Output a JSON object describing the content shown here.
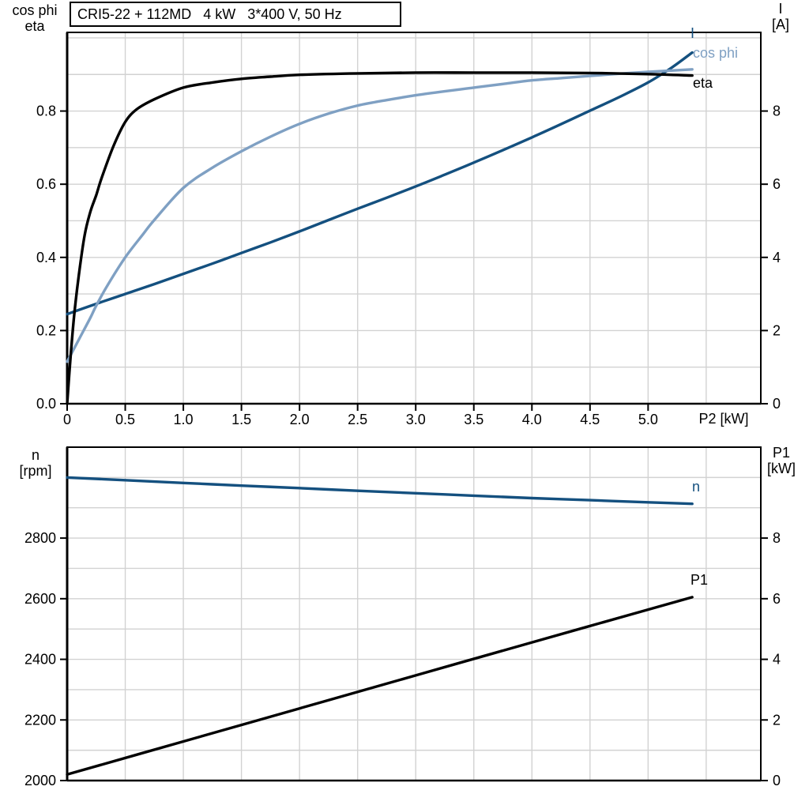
{
  "title": {
    "text": "CRI5-22 + 112MD   4 kW   3*400 V, 50 Hz"
  },
  "colors": {
    "dark_blue": "#14507F",
    "light_blue": "#7FA0C3",
    "black": "#000000",
    "grid": "#D2D2D2",
    "frame": "#000000"
  },
  "top_chart": {
    "corner_left": {
      "line1": "cos phi",
      "line2": "eta"
    },
    "corner_right": {
      "line1": "I",
      "line2": "[A]"
    },
    "x_axis_label": "P2 [kW]"
  },
  "bottom_chart": {
    "corner_left": {
      "line1": "n",
      "line2": "[rpm]"
    },
    "corner_right": {
      "line1": "P1",
      "line2": "[kW]"
    }
  },
  "chart_data": [
    {
      "type": "line",
      "title": "CRI5-22 + 112MD   4 kW   3*400 V, 50 Hz",
      "xlabel": "P2 [kW]",
      "ylabel_left": "cos phi / eta",
      "ylabel_right": "I [A]",
      "xlim": [
        0,
        5.97
      ],
      "ylim_left": [
        0,
        1.015
      ],
      "ylim_right": [
        0,
        10.15
      ],
      "grid": true,
      "legend_position": "end-of-curve",
      "x_ticks": {
        "values": [
          0,
          0.5,
          1,
          1.5,
          2,
          2.5,
          3,
          3.5,
          4,
          4.5,
          5
        ],
        "labels": [
          "0",
          "0.5",
          "1.0",
          "1.5",
          "2.0",
          "2.5",
          "3.0",
          "3.5",
          "4.0",
          "4.5",
          "5.0"
        ]
      },
      "y_ticks_left": {
        "values": [
          0,
          0.2,
          0.4,
          0.6,
          0.8
        ],
        "labels": [
          "0.0",
          "0.2",
          "0.4",
          "0.6",
          "0.8"
        ]
      },
      "y_ticks_right": {
        "values": [
          0,
          2,
          4,
          6,
          8
        ],
        "labels": [
          "0",
          "2",
          "4",
          "6",
          "8"
        ]
      },
      "grid_x": [
        0.5,
        1,
        1.5,
        2,
        2.5,
        3,
        3.5,
        4,
        4.5,
        5,
        5.5
      ],
      "grid_y": [
        0.1,
        0.2,
        0.3,
        0.4,
        0.5,
        0.6,
        0.7,
        0.8,
        0.9,
        1.0
      ],
      "series": [
        {
          "name": "I",
          "axis": "right",
          "color": "dark_blue",
          "points": [
            [
              0,
              2.45
            ],
            [
              0.25,
              2.73
            ],
            [
              0.5,
              3.0
            ],
            [
              0.75,
              3.27
            ],
            [
              1,
              3.55
            ],
            [
              1.25,
              3.83
            ],
            [
              1.5,
              4.12
            ],
            [
              1.75,
              4.41
            ],
            [
              2,
              4.71
            ],
            [
              2.25,
              5.02
            ],
            [
              2.5,
              5.33
            ],
            [
              2.75,
              5.63
            ],
            [
              3,
              5.94
            ],
            [
              3.25,
              6.26
            ],
            [
              3.5,
              6.59
            ],
            [
              3.75,
              6.93
            ],
            [
              4,
              7.28
            ],
            [
              4.25,
              7.64
            ],
            [
              4.5,
              8.01
            ],
            [
              4.75,
              8.38
            ],
            [
              5,
              8.78
            ],
            [
              5.2,
              9.18
            ],
            [
              5.38,
              9.6
            ]
          ]
        },
        {
          "name": "cos phi",
          "axis": "left",
          "color": "light_blue",
          "points": [
            [
              0,
              0.115
            ],
            [
              0.1,
              0.175
            ],
            [
              0.2,
              0.235
            ],
            [
              0.25,
              0.268
            ],
            [
              0.35,
              0.325
            ],
            [
              0.5,
              0.4
            ],
            [
              0.65,
              0.462
            ],
            [
              0.75,
              0.502
            ],
            [
              1,
              0.59
            ],
            [
              1.25,
              0.645
            ],
            [
              1.5,
              0.69
            ],
            [
              1.75,
              0.73
            ],
            [
              2,
              0.765
            ],
            [
              2.25,
              0.793
            ],
            [
              2.5,
              0.815
            ],
            [
              2.75,
              0.83
            ],
            [
              3,
              0.843
            ],
            [
              3.25,
              0.854
            ],
            [
              3.5,
              0.864
            ],
            [
              3.75,
              0.874
            ],
            [
              4,
              0.884
            ],
            [
              4.25,
              0.89
            ],
            [
              4.5,
              0.896
            ],
            [
              4.75,
              0.902
            ],
            [
              5,
              0.907
            ],
            [
              5.38,
              0.914
            ]
          ]
        },
        {
          "name": "eta",
          "axis": "left",
          "color": "black",
          "points": [
            [
              0,
              0
            ],
            [
              0.03,
              0.13
            ],
            [
              0.06,
              0.24
            ],
            [
              0.1,
              0.35
            ],
            [
              0.15,
              0.46
            ],
            [
              0.2,
              0.525
            ],
            [
              0.25,
              0.57
            ],
            [
              0.3,
              0.62
            ],
            [
              0.4,
              0.705
            ],
            [
              0.5,
              0.77
            ],
            [
              0.6,
              0.805
            ],
            [
              0.75,
              0.832
            ],
            [
              1,
              0.864
            ],
            [
              1.25,
              0.878
            ],
            [
              1.5,
              0.888
            ],
            [
              1.75,
              0.894
            ],
            [
              2,
              0.899
            ],
            [
              2.5,
              0.903
            ],
            [
              3,
              0.905
            ],
            [
              3.5,
              0.905
            ],
            [
              4,
              0.905
            ],
            [
              4.5,
              0.904
            ],
            [
              5,
              0.901
            ],
            [
              5.38,
              0.897
            ]
          ]
        }
      ]
    },
    {
      "type": "line",
      "title": "",
      "xlabel": "",
      "ylabel_left": "n [rpm]",
      "ylabel_right": "P1 [kW]",
      "xlim": [
        0,
        5.97
      ],
      "ylim_left": [
        2000,
        3100
      ],
      "ylim_right": [
        0,
        11
      ],
      "grid": true,
      "legend_position": "end-of-curve",
      "x_ticks": {
        "values": [],
        "labels": []
      },
      "y_ticks_left": {
        "values": [
          2000,
          2200,
          2400,
          2600,
          2800
        ],
        "labels": [
          "2000",
          "2200",
          "2400",
          "2600",
          "2800"
        ]
      },
      "y_ticks_right": {
        "values": [
          0,
          2,
          4,
          6,
          8
        ],
        "labels": [
          "0",
          "2",
          "4",
          "6",
          "8"
        ]
      },
      "grid_x": [
        0.5,
        1,
        1.5,
        2,
        2.5,
        3,
        3.5,
        4,
        4.5,
        5,
        5.5
      ],
      "grid_y": [
        2100,
        2200,
        2300,
        2400,
        2500,
        2600,
        2700,
        2800,
        2900,
        3000
      ],
      "series": [
        {
          "name": "n",
          "axis": "left",
          "color": "dark_blue",
          "points": [
            [
              0,
              3000
            ],
            [
              0.5,
              2991
            ],
            [
              1,
              2982
            ],
            [
              1.5,
              2973
            ],
            [
              2,
              2965
            ],
            [
              2.5,
              2956
            ],
            [
              3,
              2948
            ],
            [
              3.5,
              2940
            ],
            [
              4,
              2932
            ],
            [
              4.5,
              2925
            ],
            [
              5,
              2918
            ],
            [
              5.38,
              2913
            ]
          ]
        },
        {
          "name": "P1",
          "axis": "right",
          "color": "black",
          "points": [
            [
              0,
              0.2
            ],
            [
              1,
              1.29
            ],
            [
              2,
              2.38
            ],
            [
              3,
              3.47
            ],
            [
              4,
              4.56
            ],
            [
              5,
              5.64
            ],
            [
              5.38,
              6.05
            ]
          ]
        }
      ]
    }
  ]
}
